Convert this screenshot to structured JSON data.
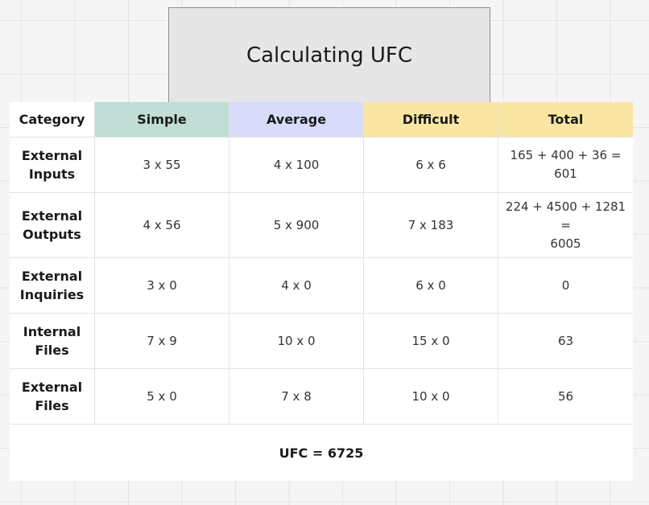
{
  "title": "Calculating UFC",
  "table": {
    "headers": [
      "Category",
      "Simple",
      "Average",
      "Difficult",
      "Total"
    ],
    "rows": [
      {
        "category": "External\nInputs",
        "simple": "3 x 55",
        "average": "4 x 100",
        "difficult": "6 x 6",
        "total": "165 + 400 + 36 = 601"
      },
      {
        "category": "External\nOutputs",
        "simple": "4 x 56",
        "average": "5 x 900",
        "difficult": "7 x 183",
        "total": "224 + 4500 + 1281 =\n6005"
      },
      {
        "category": "External\nInquiries",
        "simple": "3 x 0",
        "average": "4 x 0",
        "difficult": "6 x 0",
        "total": "0"
      },
      {
        "category": "Internal\nFiles",
        "simple": "7 x 9",
        "average": "10 x 0",
        "difficult": "15 x 0",
        "total": "63"
      },
      {
        "category": "External\nFiles",
        "simple": "5 x 0",
        "average": "7 x 8",
        "difficult": "10 x 0",
        "total": "56"
      }
    ],
    "footer": "UFC = 6725"
  },
  "colors": {
    "simple_header": "#c1ddd5",
    "average_header": "#d8dcf8",
    "difficult_header": "#f9e6a3",
    "total_header": "#f9e6a3",
    "title_box": "#e6e6e6"
  }
}
